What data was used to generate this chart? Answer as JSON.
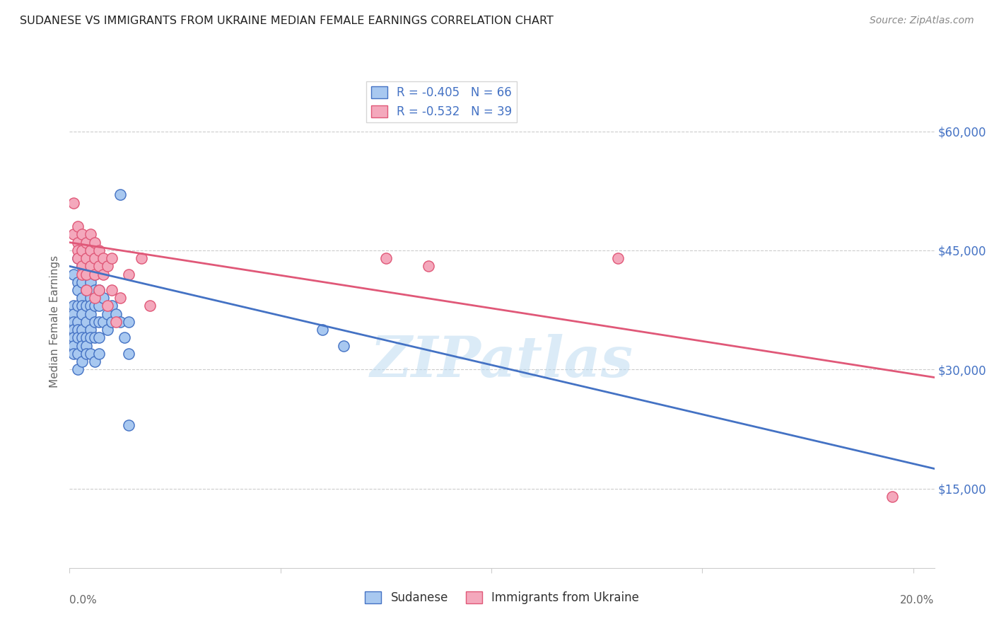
{
  "title": "SUDANESE VS IMMIGRANTS FROM UKRAINE MEDIAN FEMALE EARNINGS CORRELATION CHART",
  "source": "Source: ZipAtlas.com",
  "ylabel": "Median Female Earnings",
  "yticks": [
    15000,
    30000,
    45000,
    60000
  ],
  "ytick_labels": [
    "$15,000",
    "$30,000",
    "$45,000",
    "$60,000"
  ],
  "xlim": [
    0.0,
    0.205
  ],
  "ylim": [
    5000,
    67000
  ],
  "legend_blue_label": "R = -0.405   N = 66",
  "legend_pink_label": "R = -0.532   N = 39",
  "legend_bottom_blue": "Sudanese",
  "legend_bottom_pink": "Immigrants from Ukraine",
  "blue_color": "#A8C8F0",
  "pink_color": "#F4A8BC",
  "blue_line_color": "#4472C4",
  "pink_line_color": "#E05878",
  "watermark": "ZIPatlas",
  "blue_scatter": [
    [
      0.001,
      42000
    ],
    [
      0.001,
      38000
    ],
    [
      0.001,
      37000
    ],
    [
      0.001,
      36000
    ],
    [
      0.001,
      35000
    ],
    [
      0.001,
      34000
    ],
    [
      0.001,
      33000
    ],
    [
      0.001,
      32000
    ],
    [
      0.002,
      44000
    ],
    [
      0.002,
      41000
    ],
    [
      0.002,
      40000
    ],
    [
      0.002,
      38000
    ],
    [
      0.002,
      36000
    ],
    [
      0.002,
      35000
    ],
    [
      0.002,
      34000
    ],
    [
      0.002,
      32000
    ],
    [
      0.002,
      30000
    ],
    [
      0.003,
      43000
    ],
    [
      0.003,
      41000
    ],
    [
      0.003,
      39000
    ],
    [
      0.003,
      38000
    ],
    [
      0.003,
      37000
    ],
    [
      0.003,
      35000
    ],
    [
      0.003,
      34000
    ],
    [
      0.003,
      33000
    ],
    [
      0.003,
      31000
    ],
    [
      0.004,
      42000
    ],
    [
      0.004,
      40000
    ],
    [
      0.004,
      38000
    ],
    [
      0.004,
      36000
    ],
    [
      0.004,
      34000
    ],
    [
      0.004,
      33000
    ],
    [
      0.004,
      32000
    ],
    [
      0.005,
      41000
    ],
    [
      0.005,
      39000
    ],
    [
      0.005,
      38000
    ],
    [
      0.005,
      37000
    ],
    [
      0.005,
      35000
    ],
    [
      0.005,
      34000
    ],
    [
      0.005,
      32000
    ],
    [
      0.006,
      42000
    ],
    [
      0.006,
      40000
    ],
    [
      0.006,
      38000
    ],
    [
      0.006,
      36000
    ],
    [
      0.006,
      34000
    ],
    [
      0.006,
      31000
    ],
    [
      0.007,
      40000
    ],
    [
      0.007,
      38000
    ],
    [
      0.007,
      36000
    ],
    [
      0.007,
      34000
    ],
    [
      0.007,
      32000
    ],
    [
      0.008,
      39000
    ],
    [
      0.008,
      36000
    ],
    [
      0.009,
      37000
    ],
    [
      0.009,
      35000
    ],
    [
      0.01,
      38000
    ],
    [
      0.01,
      36000
    ],
    [
      0.011,
      37000
    ],
    [
      0.012,
      52000
    ],
    [
      0.012,
      36000
    ],
    [
      0.013,
      34000
    ],
    [
      0.014,
      36000
    ],
    [
      0.014,
      32000
    ],
    [
      0.014,
      23000
    ],
    [
      0.06,
      35000
    ],
    [
      0.065,
      33000
    ]
  ],
  "pink_scatter": [
    [
      0.001,
      51000
    ],
    [
      0.001,
      47000
    ],
    [
      0.002,
      48000
    ],
    [
      0.002,
      46000
    ],
    [
      0.002,
      45000
    ],
    [
      0.002,
      44000
    ],
    [
      0.003,
      47000
    ],
    [
      0.003,
      45000
    ],
    [
      0.003,
      43000
    ],
    [
      0.003,
      42000
    ],
    [
      0.004,
      46000
    ],
    [
      0.004,
      44000
    ],
    [
      0.004,
      42000
    ],
    [
      0.004,
      40000
    ],
    [
      0.005,
      47000
    ],
    [
      0.005,
      45000
    ],
    [
      0.005,
      43000
    ],
    [
      0.006,
      46000
    ],
    [
      0.006,
      44000
    ],
    [
      0.006,
      42000
    ],
    [
      0.006,
      39000
    ],
    [
      0.007,
      45000
    ],
    [
      0.007,
      43000
    ],
    [
      0.007,
      40000
    ],
    [
      0.008,
      44000
    ],
    [
      0.008,
      42000
    ],
    [
      0.009,
      43000
    ],
    [
      0.009,
      38000
    ],
    [
      0.01,
      44000
    ],
    [
      0.01,
      40000
    ],
    [
      0.011,
      36000
    ],
    [
      0.012,
      39000
    ],
    [
      0.014,
      42000
    ],
    [
      0.017,
      44000
    ],
    [
      0.019,
      38000
    ],
    [
      0.075,
      44000
    ],
    [
      0.085,
      43000
    ],
    [
      0.13,
      44000
    ],
    [
      0.195,
      14000
    ]
  ],
  "blue_line_x": [
    0.0,
    0.205
  ],
  "blue_line_y": [
    43000,
    17500
  ],
  "pink_line_x": [
    0.0,
    0.205
  ],
  "pink_line_y": [
    46000,
    29000
  ]
}
